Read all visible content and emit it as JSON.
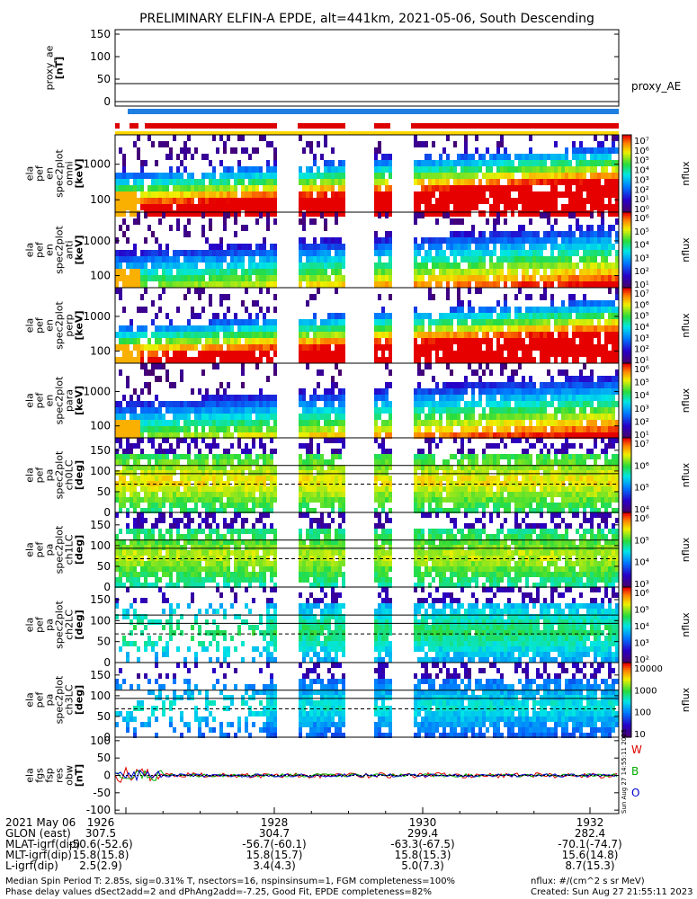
{
  "title": "PRELIMINARY ELFIN-A EPDE, alt=441km, 2021-05-06, South Descending",
  "colors": {
    "red": "#dd0000",
    "blue": "#1e7fe0",
    "yellow": "#ffd700",
    "green": "#00aa00"
  },
  "chart_data": [
    {
      "type": "line",
      "id": "proxy_ae",
      "ylabel": [
        "proxy_ae",
        "[nT]"
      ],
      "yticks": [
        "150",
        "100",
        "50",
        "0"
      ],
      "ylim": [
        -10,
        160
      ],
      "right_label": "proxy_AE",
      "series": [
        {
          "name": "",
          "values": []
        }
      ]
    },
    {
      "type": "heatmap",
      "id": "spec_omni",
      "ylabel": [
        "ela",
        "pef",
        "en",
        "spec2plot",
        "omni",
        "[keV]"
      ],
      "yticks": [
        "1000",
        "100"
      ],
      "log_y": true,
      "colorbar_ticks": [
        "10⁷",
        "10⁶",
        "10⁵",
        "10⁴",
        "10³",
        "10²",
        "10¹",
        "10⁰"
      ],
      "colorbar_label": "nflux"
    },
    {
      "type": "heatmap",
      "id": "spec_anti",
      "ylabel": [
        "ela",
        "pef",
        "en",
        "spec2plot",
        "anti",
        "[keV]"
      ],
      "yticks": [
        "1000",
        "100"
      ],
      "log_y": true,
      "colorbar_ticks": [
        "10⁶",
        "10⁵",
        "10⁴",
        "10³",
        "10²",
        "10¹"
      ],
      "colorbar_label": "nflux"
    },
    {
      "type": "heatmap",
      "id": "spec_perp",
      "ylabel": [
        "ela",
        "pef",
        "en",
        "spec2plot",
        "perp",
        "[keV]"
      ],
      "yticks": [
        "1000",
        "100"
      ],
      "log_y": true,
      "colorbar_ticks": [
        "10⁷",
        "10⁶",
        "10⁵",
        "10⁴",
        "10³",
        "10²",
        "10¹"
      ],
      "colorbar_label": "nflux"
    },
    {
      "type": "heatmap",
      "id": "spec_para",
      "ylabel": [
        "ela",
        "pef",
        "en",
        "spec2plot",
        "para",
        "[keV]"
      ],
      "yticks": [
        "1000",
        "100"
      ],
      "log_y": true,
      "colorbar_ticks": [
        "10⁶",
        "10⁵",
        "10⁴",
        "10³",
        "10²",
        "10¹"
      ],
      "colorbar_label": "nflux"
    },
    {
      "type": "heatmap",
      "id": "pa_ch0",
      "ylabel": [
        "ela",
        "pef",
        "pa",
        "spec2plot",
        "ch0LC",
        "[deg]"
      ],
      "yticks": [
        "150",
        "100",
        "50",
        "0"
      ],
      "ylim": [
        0,
        180
      ],
      "colorbar_ticks": [
        "10⁷",
        "10⁶",
        "10⁵",
        "10⁴"
      ],
      "colorbar_label": "nflux"
    },
    {
      "type": "heatmap",
      "id": "pa_ch1",
      "ylabel": [
        "ela",
        "pef",
        "pa",
        "spec2plot",
        "ch1LC",
        "[deg]"
      ],
      "yticks": [
        "150",
        "100",
        "50",
        "0"
      ],
      "ylim": [
        0,
        180
      ],
      "colorbar_ticks": [
        "10⁶",
        "10⁵",
        "10⁴",
        "10³"
      ],
      "colorbar_label": "nflux"
    },
    {
      "type": "heatmap",
      "id": "pa_ch2",
      "ylabel": [
        "ela",
        "pef",
        "pa",
        "spec2plot",
        "ch2LC",
        "[deg]"
      ],
      "yticks": [
        "150",
        "100",
        "50",
        "0"
      ],
      "ylim": [
        0,
        180
      ],
      "colorbar_ticks": [
        "10⁶",
        "10⁵",
        "10⁴",
        "10³",
        "10²"
      ],
      "colorbar_label": "nflux"
    },
    {
      "type": "heatmap",
      "id": "pa_ch3",
      "ylabel": [
        "ela",
        "pef",
        "pa",
        "spec2plot",
        "ch3LC",
        "[deg]"
      ],
      "yticks": [
        "150",
        "100",
        "50",
        "0"
      ],
      "ylim": [
        0,
        180
      ],
      "colorbar_ticks": [
        "10000",
        "1000",
        "100",
        "10"
      ],
      "colorbar_label": "nflux"
    },
    {
      "type": "line",
      "id": "fgs_res",
      "ylabel": [
        "ela",
        "fgs",
        "fsp",
        "res",
        "obw",
        "[nT]"
      ],
      "yticks": [
        "100",
        "50",
        "0",
        "-50",
        "-100"
      ],
      "ylim": [
        -110,
        110
      ],
      "legend": [
        "W",
        "B",
        "O"
      ],
      "series": [
        {
          "name": "W",
          "values": []
        },
        {
          "name": "B",
          "values": []
        },
        {
          "name": "O",
          "values": []
        }
      ]
    }
  ],
  "xaxis": {
    "ticks": [
      "1926",
      "1928",
      "1930",
      "1932"
    ],
    "rows": [
      {
        "label": "2021 May 06",
        "values": []
      },
      {
        "label": "GLON (east)",
        "values": [
          "307.5",
          "304.7",
          "299.4",
          "282.4"
        ]
      },
      {
        "label": "MLAT-igrf(dip)",
        "values": [
          "-50.6(-52.6)",
          "-56.7(-60.1)",
          "-63.3(-67.5)",
          "-70.1(-74.7)"
        ]
      },
      {
        "label": "MLT-igrf(dip)",
        "values": [
          "15.8(15.8)",
          "15.8(15.7)",
          "15.8(15.3)",
          "15.6(14.8)"
        ]
      },
      {
        "label": "L-igrf(dip)",
        "values": [
          "2.5(2.9)",
          "3.4(4.3)",
          "5.0(7.3)",
          "8.7(15.3)"
        ]
      }
    ]
  },
  "footer": {
    "line1": "Median Spin Period T: 2.85s, sig=0.31% T, nsectors=16, nspinsinsum=1, FGM completeness=100%",
    "line2": "Phase delay values dSect2add=2 and dPhAng2add=-7.25, Good Fit, EPDE completeness=82%",
    "units": "nflux: #/(cm^2 s sr MeV)",
    "created": "Created: Sun Aug 27 21:55:11 2023",
    "stamp": "Sun Aug 27 14:55:11 2023"
  }
}
